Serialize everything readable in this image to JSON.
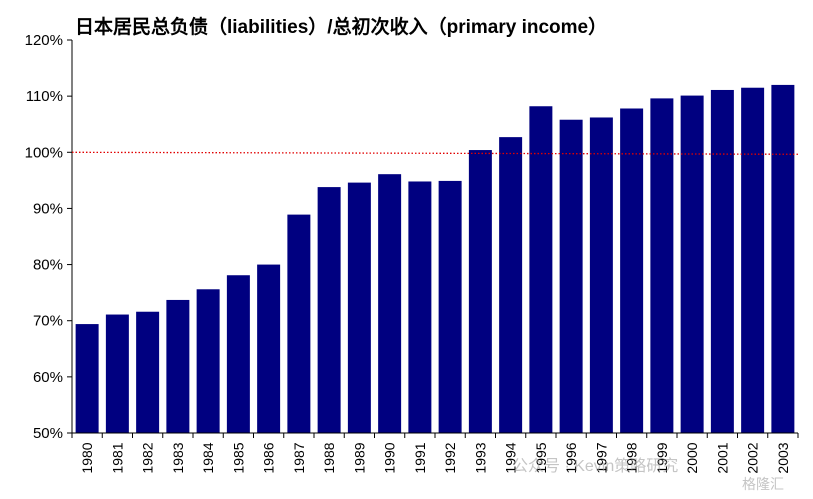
{
  "chart_data": {
    "type": "bar",
    "title": "日本居民总负债（liabilities）/总初次收入（primary income）",
    "categories": [
      "1980",
      "1981",
      "1982",
      "1983",
      "1984",
      "1985",
      "1986",
      "1987",
      "1988",
      "1989",
      "1990",
      "1991",
      "1992",
      "1993",
      "1994",
      "1995",
      "1996",
      "1997",
      "1998",
      "1999",
      "2000",
      "2001",
      "2002",
      "2003"
    ],
    "series": [
      {
        "values": [
          69.4,
          71.1,
          71.6,
          73.7,
          75.6,
          78.1,
          80.0,
          88.9,
          93.8,
          94.6,
          96.1,
          94.8,
          94.9,
          100.4,
          102.7,
          108.2,
          105.8,
          106.2,
          107.8,
          109.6,
          110.1,
          111.1,
          111.5,
          112.0
        ]
      }
    ],
    "ylim": [
      50,
      120
    ],
    "yticks": [
      "50%",
      "60%",
      "70%",
      "80%",
      "90%",
      "100%",
      "110%",
      "120%"
    ],
    "reference_line": {
      "value": 100,
      "style": "dotted",
      "color": "#e00000"
    },
    "bar_color": "#000080",
    "grid": false,
    "xlabel": "",
    "ylabel": ""
  },
  "watermark": {
    "main": "公众号 · Kevin策略研究",
    "secondary": "格隆汇"
  }
}
